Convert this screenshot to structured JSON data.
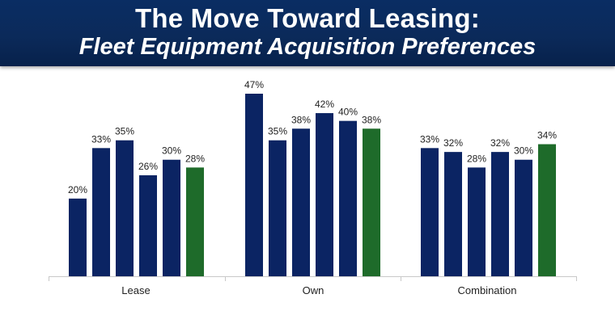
{
  "header": {
    "title_line1": "The Move Toward Leasing:",
    "title_line2": "Fleet Equipment Acquisition Preferences"
  },
  "colors": {
    "primary_bar": "#0b2463",
    "highlight_bar": "#1e6b2a",
    "banner": "#0b2a5a"
  },
  "chart_data": {
    "type": "bar",
    "categories": [
      "Lease",
      "Own",
      "Combination"
    ],
    "series": [
      {
        "values": [
          20,
          47,
          33
        ],
        "color": "#0b2463"
      },
      {
        "values": [
          33,
          35,
          32
        ],
        "color": "#0b2463"
      },
      {
        "values": [
          35,
          38,
          28
        ],
        "color": "#0b2463"
      },
      {
        "values": [
          26,
          42,
          32
        ],
        "color": "#0b2463"
      },
      {
        "values": [
          30,
          40,
          30
        ],
        "color": "#0b2463"
      },
      {
        "values": [
          28,
          38,
          34
        ],
        "color": "#1e6b2a"
      }
    ],
    "value_format": "{v}%",
    "ylim": [
      0,
      50
    ],
    "grid": false,
    "legend": "none"
  }
}
